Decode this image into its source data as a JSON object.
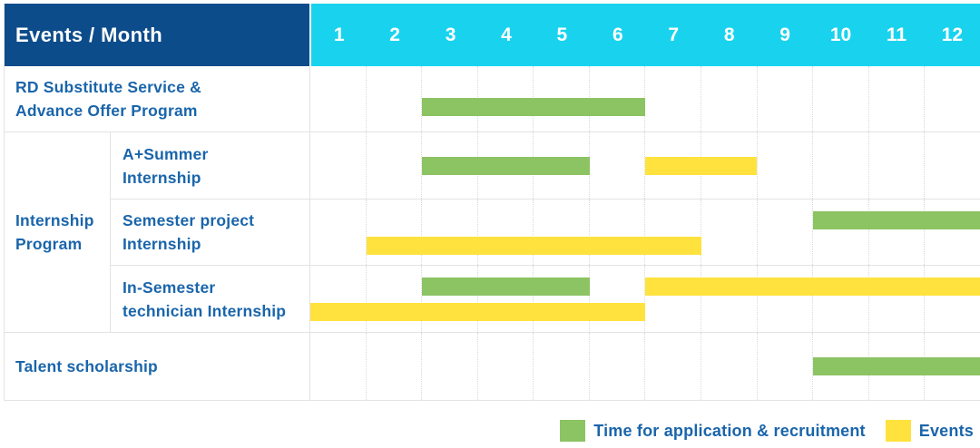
{
  "colors": {
    "header_bg": "#0d4c8b",
    "months_bg": "#19d3ee",
    "green": "#8cc363",
    "yellow": "#ffe23e",
    "label_text": "#1a65ab",
    "grid_solid": "#e3e3e3",
    "grid_dotted": "#d9d9d9"
  },
  "chart_data": {
    "type": "bar",
    "subtype": "gantt",
    "title": "Events / Month",
    "xlabel": "Month",
    "x_ticks": [
      "1",
      "2",
      "3",
      "4",
      "5",
      "6",
      "7",
      "8",
      "9",
      "10",
      "11",
      "12"
    ],
    "xlim": [
      1,
      12
    ],
    "grid": "vertical-dotted",
    "legend_position": "bottom-right",
    "legend": [
      {
        "key": "application",
        "name": "Time for application & recruitment",
        "color_key": "green"
      },
      {
        "key": "event",
        "name": "Events",
        "color_key": "yellow"
      }
    ],
    "rows": [
      {
        "label_lines": [
          "RD Substitute Service &",
          "Advance Offer Program"
        ],
        "segments": [
          {
            "kind": "application",
            "start_month": 3,
            "end_month": 6,
            "lane": "midlow"
          }
        ]
      },
      {
        "group_label_lines": [
          "Internship",
          "Program"
        ],
        "subrows": [
          {
            "label_lines": [
              "A+Summer",
              "Internship"
            ],
            "segments": [
              {
                "kind": "application",
                "start_month": 3,
                "end_month": 5,
                "lane": "single"
              },
              {
                "kind": "event",
                "start_month": 7,
                "end_month": 8,
                "lane": "single"
              }
            ]
          },
          {
            "label_lines": [
              "Semester project",
              "Internship"
            ],
            "segments": [
              {
                "kind": "application",
                "start_month": 10,
                "end_month": 12,
                "lane": "upper"
              },
              {
                "kind": "event",
                "start_month": 2,
                "end_month": 7,
                "lane": "lower"
              }
            ]
          },
          {
            "label_lines": [
              "In-Semester",
              "technician Internship"
            ],
            "segments": [
              {
                "kind": "application",
                "start_month": 3,
                "end_month": 5,
                "lane": "upper"
              },
              {
                "kind": "event",
                "start_month": 7,
                "end_month": 12,
                "lane": "upper"
              },
              {
                "kind": "event",
                "start_month": 1,
                "end_month": 6,
                "lane": "lower"
              }
            ]
          }
        ]
      },
      {
        "label_lines": [
          "Talent scholarship"
        ],
        "segments": [
          {
            "kind": "application",
            "start_month": 10,
            "end_month": 12,
            "lane": "single"
          }
        ]
      }
    ]
  }
}
